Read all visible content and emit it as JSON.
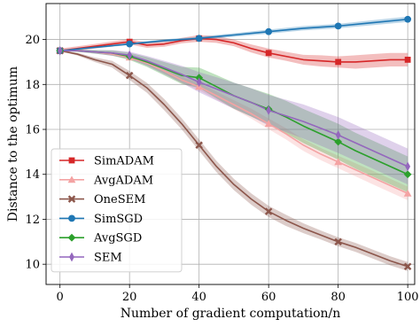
{
  "chart_data": {
    "type": "line",
    "title": "",
    "xlabel": "Number of gradient computation/n",
    "ylabel": "Distance to the optimum",
    "xlim": [
      -4,
      102
    ],
    "ylim": [
      9.1,
      21.6
    ],
    "xticks": [
      0,
      20,
      40,
      60,
      80,
      100
    ],
    "yticks": [
      10,
      12,
      14,
      16,
      18,
      20
    ],
    "xtick_labels": [
      "0",
      "20",
      "40",
      "60",
      "80",
      "100"
    ],
    "ytick_labels": [
      "10",
      "12",
      "14",
      "16",
      "18",
      "20"
    ],
    "grid": true,
    "legend_position": "lower-left",
    "series": [
      {
        "name": "SimADAM",
        "color": "#d62728",
        "marker": "square",
        "x": [
          0,
          10,
          20,
          25,
          30,
          35,
          40,
          45,
          50,
          55,
          60,
          65,
          70,
          75,
          80,
          85,
          90,
          95,
          100
        ],
        "y": [
          19.5,
          19.7,
          19.9,
          19.75,
          19.8,
          19.95,
          20.05,
          20.0,
          19.85,
          19.6,
          19.4,
          19.25,
          19.1,
          19.05,
          19.0,
          19.0,
          19.05,
          19.1,
          19.1
        ],
        "band": [
          0.1,
          0.1,
          0.12,
          0.12,
          0.12,
          0.12,
          0.15,
          0.15,
          0.15,
          0.18,
          0.2,
          0.2,
          0.22,
          0.25,
          0.25,
          0.3,
          0.3,
          0.3,
          0.3
        ],
        "marker_x": [
          0,
          20,
          40,
          60,
          80,
          100
        ]
      },
      {
        "name": "AvgADAM",
        "color": "#f4a3a3",
        "marker": "triangle",
        "x": [
          0,
          5,
          10,
          15,
          20,
          25,
          30,
          35,
          40,
          45,
          50,
          55,
          60,
          65,
          70,
          75,
          80,
          85,
          90,
          95,
          100
        ],
        "y": [
          19.5,
          19.5,
          19.45,
          19.35,
          19.2,
          18.95,
          18.6,
          18.2,
          17.9,
          17.5,
          17.1,
          16.7,
          16.25,
          15.8,
          15.3,
          14.9,
          14.55,
          14.2,
          13.85,
          13.5,
          13.15
        ],
        "band": [
          0.02,
          0.03,
          0.04,
          0.06,
          0.08,
          0.1,
          0.12,
          0.14,
          0.16,
          0.18,
          0.2,
          0.22,
          0.24,
          0.25,
          0.26,
          0.27,
          0.28,
          0.29,
          0.3,
          0.3,
          0.3
        ],
        "marker_x": [
          0,
          20,
          40,
          60,
          80,
          100
        ]
      },
      {
        "name": "OneSEM",
        "color": "#8c564b",
        "marker": "x",
        "x": [
          0,
          5,
          10,
          15,
          20,
          25,
          30,
          35,
          40,
          45,
          50,
          55,
          60,
          65,
          70,
          75,
          80,
          85,
          90,
          95,
          100
        ],
        "y": [
          19.5,
          19.35,
          19.1,
          18.9,
          18.4,
          17.85,
          17.1,
          16.25,
          15.3,
          14.35,
          13.55,
          12.9,
          12.35,
          11.95,
          11.6,
          11.3,
          11.0,
          10.75,
          10.45,
          10.15,
          9.9
        ],
        "band": [
          0.02,
          0.06,
          0.1,
          0.15,
          0.2,
          0.22,
          0.25,
          0.25,
          0.25,
          0.25,
          0.25,
          0.25,
          0.25,
          0.25,
          0.22,
          0.2,
          0.2,
          0.2,
          0.2,
          0.2,
          0.2
        ],
        "marker_x": [
          0,
          20,
          40,
          60,
          80,
          100
        ]
      },
      {
        "name": "SimSGD",
        "color": "#1f77b4",
        "marker": "circle",
        "x": [
          0,
          10,
          20,
          30,
          40,
          50,
          60,
          70,
          80,
          90,
          100
        ],
        "y": [
          19.5,
          19.65,
          19.8,
          19.95,
          20.05,
          20.2,
          20.35,
          20.5,
          20.6,
          20.75,
          20.9
        ],
        "band": [
          0.03,
          0.04,
          0.05,
          0.06,
          0.07,
          0.08,
          0.09,
          0.1,
          0.1,
          0.11,
          0.12
        ],
        "marker_x": [
          0,
          20,
          40,
          60,
          80,
          100
        ]
      },
      {
        "name": "AvgSGD",
        "color": "#2ca02c",
        "marker": "diamond",
        "x": [
          0,
          5,
          10,
          15,
          20,
          25,
          30,
          35,
          40,
          45,
          50,
          55,
          60,
          65,
          70,
          75,
          80,
          85,
          90,
          95,
          100
        ],
        "y": [
          19.5,
          19.5,
          19.45,
          19.4,
          19.25,
          19.0,
          18.7,
          18.4,
          18.3,
          17.9,
          17.5,
          17.2,
          16.9,
          16.55,
          16.15,
          15.8,
          15.45,
          15.05,
          14.7,
          14.35,
          14.0
        ],
        "band": [
          0.02,
          0.05,
          0.08,
          0.12,
          0.16,
          0.22,
          0.3,
          0.38,
          0.45,
          0.52,
          0.58,
          0.63,
          0.68,
          0.72,
          0.76,
          0.78,
          0.8,
          0.8,
          0.8,
          0.8,
          0.8
        ],
        "marker_x": [
          0,
          20,
          40,
          60,
          80,
          100
        ]
      },
      {
        "name": "SEM",
        "color": "#9467bd",
        "marker": "thin_diamond",
        "x": [
          0,
          5,
          10,
          15,
          20,
          25,
          30,
          35,
          40,
          45,
          50,
          55,
          60,
          65,
          70,
          75,
          80,
          85,
          90,
          95,
          100
        ],
        "y": [
          19.5,
          19.5,
          19.45,
          19.4,
          19.3,
          19.05,
          18.75,
          18.45,
          18.1,
          17.8,
          17.5,
          17.2,
          16.85,
          16.6,
          16.35,
          16.05,
          15.75,
          15.4,
          15.05,
          14.7,
          14.35
        ],
        "band": [
          0.02,
          0.05,
          0.08,
          0.12,
          0.16,
          0.22,
          0.3,
          0.38,
          0.45,
          0.52,
          0.58,
          0.63,
          0.68,
          0.72,
          0.76,
          0.78,
          0.8,
          0.8,
          0.8,
          0.8,
          0.8
        ],
        "marker_x": [
          0,
          20,
          40,
          60,
          80,
          100
        ]
      }
    ]
  }
}
